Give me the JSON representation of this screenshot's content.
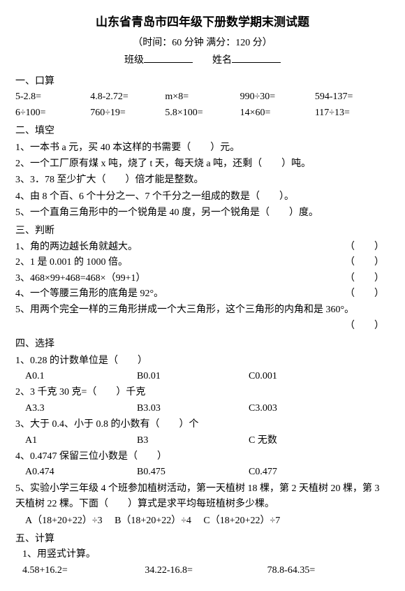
{
  "title": "山东省青岛市四年级下册数学期末测试题",
  "subtitle": "（时间：60 分钟  满分：120 分）",
  "field_class": "班级",
  "field_name": "姓名",
  "sec1": {
    "head": "一、口算",
    "r1": [
      "5-2.8=",
      "4.8-2.72=",
      "m×8=",
      "990÷30=",
      "594-137="
    ],
    "r2": [
      "6÷100=",
      "760÷19=",
      "5.8×100=",
      "14×60=",
      "117÷13="
    ]
  },
  "sec2": {
    "head": "二、填空",
    "q1": "1、一本书 a 元，买 40 本这样的书需要（　　）元。",
    "q2": "2、一个工厂原有煤 x 吨，烧了 t 天，每天烧 a 吨，还剩（　　）吨。",
    "q3": "3、3．78 至少扩大（　　）倍才能是整数。",
    "q4": "4、由 8 个百、6 个十分之一、7 个千分之一组成的数是（　　）。",
    "q5": "5、一个直角三角形中的一个锐角是 40 度，另一个锐角是（　　）度。"
  },
  "sec3": {
    "head": "三、判断",
    "paren": "（　　）",
    "q1": "1、角的两边越长角就越大。",
    "q2": "2、1 是 0.001 的 1000 倍。",
    "q3": "3、468×99+468=468×（99+1）",
    "q4": "4、一个等腰三角形的底角是 92°。",
    "q5": "5、用两个完全一样的三角形拼成一个大三角形，这个三角形的内角和是 360°。"
  },
  "sec4": {
    "head": "四、选择",
    "q1": {
      "stem": "1、0.28 的计数单位是（　　）",
      "a": "A0.1",
      "b": "B0.01",
      "c": "C0.001"
    },
    "q2": {
      "stem": "2、3 千克 30 克=（　　）千克",
      "a": "A3.3",
      "b": "B3.03",
      "c": "C3.003"
    },
    "q3": {
      "stem": "3、大于 0.4、小于 0.8 的小数有（　　）个",
      "a": "A1",
      "b": "B3",
      "c": "C 无数"
    },
    "q4": {
      "stem": "4、0.4747 保留三位小数是（　　）",
      "a": "A0.474",
      "b": "B0.475",
      "c": "C0.477"
    },
    "q5": {
      "stem": "5、实验小学三年级 4 个班参加植树活动，第一天植树 18 棵，第 2 天植树 20 棵，第 3 天植树 22 棵。下面（　　）算式是求平均每班植树多少棵。",
      "opts": "　A（18+20+22）÷3　 B（18+20+22）÷4　 C（18+20+22）÷7"
    }
  },
  "sec5": {
    "head": "五、计算",
    "sub1": "1、用竖式计算。",
    "r1": [
      "4.58+16.2=",
      "34.22-16.8=",
      "78.8-64.35="
    ]
  }
}
